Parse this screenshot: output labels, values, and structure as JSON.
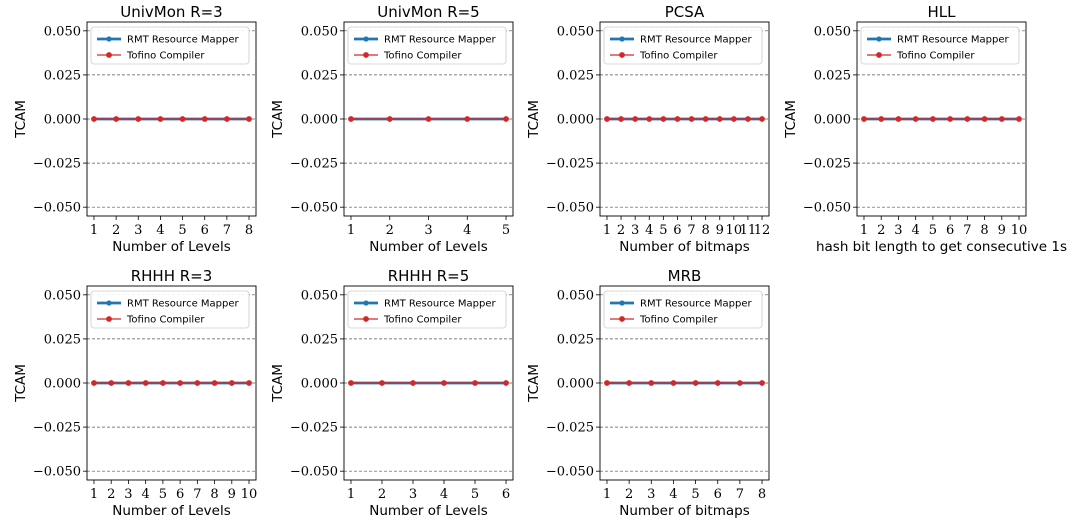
{
  "chart_data": [
    {
      "type": "line",
      "title": "UnivMon R=3",
      "xlabel": "Number of Levels",
      "ylabel": "TCAM",
      "x": [
        1,
        2,
        3,
        4,
        5,
        6,
        7,
        8
      ],
      "ylim": [
        -0.055,
        0.055
      ],
      "yticks": [
        "0.050",
        "0.025",
        "0.000",
        "−0.025",
        "−0.050"
      ],
      "grid": "y-dashed",
      "legend_position": "top",
      "series": [
        {
          "name": "RMT Resource Mapper",
          "color": "#1f77b4",
          "values": [
            0,
            0,
            0,
            0,
            0,
            0,
            0,
            0
          ]
        },
        {
          "name": "Tofino Compiler",
          "color": "#d62728",
          "values": [
            0,
            0,
            0,
            0,
            0,
            0,
            0,
            0
          ]
        }
      ]
    },
    {
      "type": "line",
      "title": "UnivMon R=5",
      "xlabel": "Number of Levels",
      "ylabel": "TCAM",
      "x": [
        1,
        2,
        3,
        4,
        5
      ],
      "ylim": [
        -0.055,
        0.055
      ],
      "yticks": [
        "0.050",
        "0.025",
        "0.000",
        "−0.025",
        "−0.050"
      ],
      "grid": "y-dashed",
      "legend_position": "top",
      "series": [
        {
          "name": "RMT Resource Mapper",
          "color": "#1f77b4",
          "values": [
            0,
            0,
            0,
            0,
            0
          ]
        },
        {
          "name": "Tofino Compiler",
          "color": "#d62728",
          "values": [
            0,
            0,
            0,
            0,
            0
          ]
        }
      ]
    },
    {
      "type": "line",
      "title": "PCSA",
      "xlabel": "Number of bitmaps",
      "ylabel": "TCAM",
      "x": [
        1,
        2,
        3,
        4,
        5,
        6,
        7,
        8,
        9,
        10,
        11,
        12
      ],
      "ylim": [
        -0.055,
        0.055
      ],
      "yticks": [
        "0.050",
        "0.025",
        "0.000",
        "−0.025",
        "−0.050"
      ],
      "grid": "y-dashed",
      "legend_position": "top",
      "series": [
        {
          "name": "RMT Resource Mapper",
          "color": "#1f77b4",
          "values": [
            0,
            0,
            0,
            0,
            0,
            0,
            0,
            0,
            0,
            0,
            0,
            0
          ]
        },
        {
          "name": "Tofino Compiler",
          "color": "#d62728",
          "values": [
            0,
            0,
            0,
            0,
            0,
            0,
            0,
            0,
            0,
            0,
            0,
            0
          ]
        }
      ]
    },
    {
      "type": "line",
      "title": "HLL",
      "xlabel": "hash bit length to get consecutive 1s",
      "ylabel": "TCAM",
      "x": [
        1,
        2,
        3,
        4,
        5,
        6,
        7,
        8,
        9,
        10
      ],
      "ylim": [
        -0.055,
        0.055
      ],
      "yticks": [
        "0.050",
        "0.025",
        "0.000",
        "−0.025",
        "−0.050"
      ],
      "grid": "y-dashed",
      "legend_position": "top",
      "series": [
        {
          "name": "RMT Resource Mapper",
          "color": "#1f77b4",
          "values": [
            0,
            0,
            0,
            0,
            0,
            0,
            0,
            0,
            0,
            0
          ]
        },
        {
          "name": "Tofino Compiler",
          "color": "#d62728",
          "values": [
            0,
            0,
            0,
            0,
            0,
            0,
            0,
            0,
            0,
            0
          ]
        }
      ]
    },
    {
      "type": "line",
      "title": "RHHH R=3",
      "xlabel": "Number of Levels",
      "ylabel": "TCAM",
      "x": [
        1,
        2,
        3,
        4,
        5,
        6,
        7,
        8,
        9,
        10
      ],
      "ylim": [
        -0.055,
        0.055
      ],
      "yticks": [
        "0.050",
        "0.025",
        "0.000",
        "−0.025",
        "−0.050"
      ],
      "grid": "y-dashed",
      "legend_position": "top",
      "series": [
        {
          "name": "RMT Resource Mapper",
          "color": "#1f77b4",
          "values": [
            0,
            0,
            0,
            0,
            0,
            0,
            0,
            0,
            0,
            0
          ]
        },
        {
          "name": "Tofino Compiler",
          "color": "#d62728",
          "values": [
            0,
            0,
            0,
            0,
            0,
            0,
            0,
            0,
            0,
            0
          ]
        }
      ]
    },
    {
      "type": "line",
      "title": "RHHH R=5",
      "xlabel": "Number of Levels",
      "ylabel": "TCAM",
      "x": [
        1,
        2,
        3,
        4,
        5,
        6
      ],
      "ylim": [
        -0.055,
        0.055
      ],
      "yticks": [
        "0.050",
        "0.025",
        "0.000",
        "−0.025",
        "−0.050"
      ],
      "grid": "y-dashed",
      "legend_position": "top",
      "series": [
        {
          "name": "RMT Resource Mapper",
          "color": "#1f77b4",
          "values": [
            0,
            0,
            0,
            0,
            0,
            0
          ]
        },
        {
          "name": "Tofino Compiler",
          "color": "#d62728",
          "values": [
            0,
            0,
            0,
            0,
            0,
            0
          ]
        }
      ]
    },
    {
      "type": "line",
      "title": "MRB",
      "xlabel": "Number of bitmaps",
      "ylabel": "TCAM",
      "x": [
        1,
        2,
        3,
        4,
        5,
        6,
        7,
        8
      ],
      "ylim": [
        -0.055,
        0.055
      ],
      "yticks": [
        "0.050",
        "0.025",
        "0.000",
        "−0.025",
        "−0.050"
      ],
      "grid": "y-dashed",
      "legend_position": "top",
      "series": [
        {
          "name": "RMT Resource Mapper",
          "color": "#1f77b4",
          "values": [
            0,
            0,
            0,
            0,
            0,
            0,
            0,
            0
          ]
        },
        {
          "name": "Tofino Compiler",
          "color": "#d62728",
          "values": [
            0,
            0,
            0,
            0,
            0,
            0,
            0,
            0
          ]
        }
      ]
    }
  ]
}
